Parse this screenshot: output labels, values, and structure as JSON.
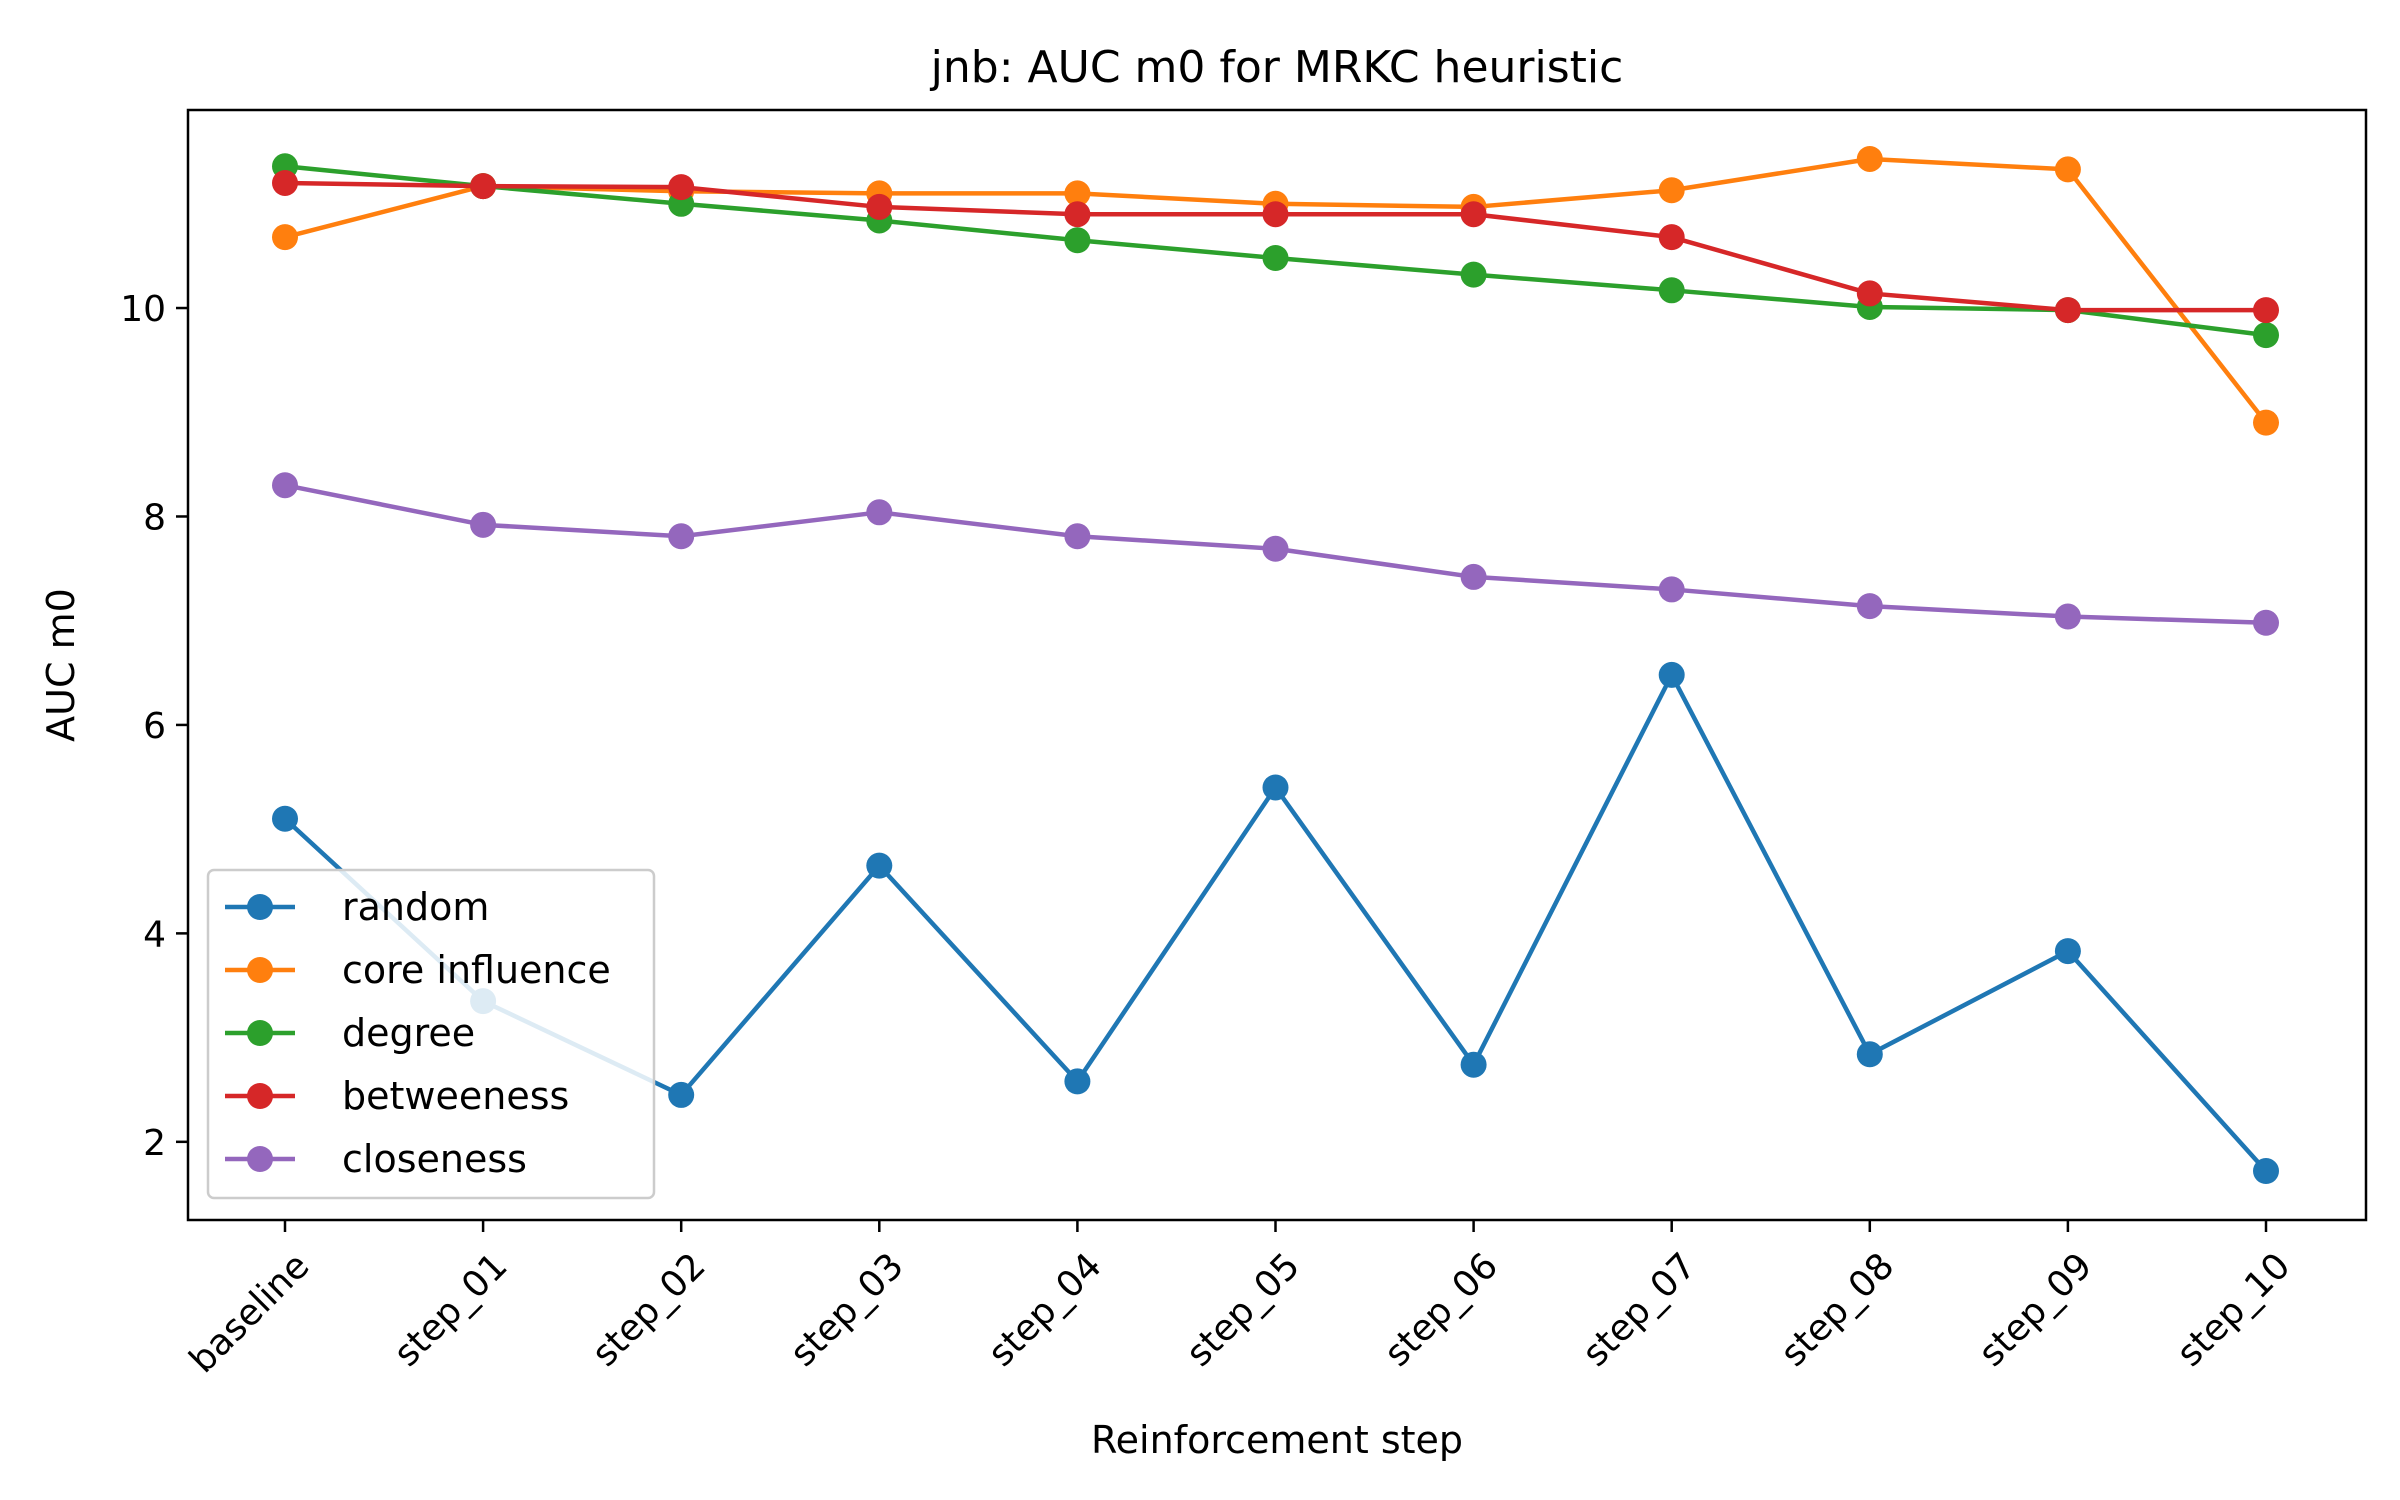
{
  "chart_data": {
    "type": "line",
    "title": "jnb: AUC m0 for MRKC heuristic",
    "xlabel": "Reinforcement step",
    "ylabel": "AUC m0",
    "categories": [
      "baseline",
      "step_01",
      "step_02",
      "step_03",
      "step_04",
      "step_05",
      "step_06",
      "step_07",
      "step_08",
      "step_09",
      "step_10"
    ],
    "ylim": [
      1.25,
      11.9
    ],
    "yticks": [
      2,
      4,
      6,
      8,
      10
    ],
    "grid": false,
    "legend_position": "lower-left",
    "series": [
      {
        "name": "random",
        "color": "#1f77b4",
        "values": [
          5.1,
          3.35,
          2.45,
          4.65,
          2.58,
          5.4,
          2.74,
          6.48,
          2.84,
          3.83,
          1.72
        ]
      },
      {
        "name": "core influence",
        "color": "#ff7f0e",
        "values": [
          10.68,
          11.17,
          11.12,
          11.1,
          11.1,
          11.0,
          10.97,
          11.13,
          11.43,
          11.33,
          8.9
        ]
      },
      {
        "name": "degree",
        "color": "#2ca02c",
        "values": [
          11.36,
          11.17,
          11.0,
          10.84,
          10.65,
          10.48,
          10.32,
          10.17,
          10.01,
          9.98,
          9.74
        ]
      },
      {
        "name": "betweeness",
        "color": "#d62728",
        "values": [
          11.2,
          11.17,
          11.16,
          10.97,
          10.9,
          10.9,
          10.9,
          10.68,
          10.14,
          9.98,
          9.98
        ]
      },
      {
        "name": "closeness",
        "color": "#9467bd",
        "values": [
          8.3,
          7.92,
          7.81,
          8.04,
          7.81,
          7.69,
          7.42,
          7.3,
          7.14,
          7.04,
          6.98
        ]
      }
    ]
  }
}
